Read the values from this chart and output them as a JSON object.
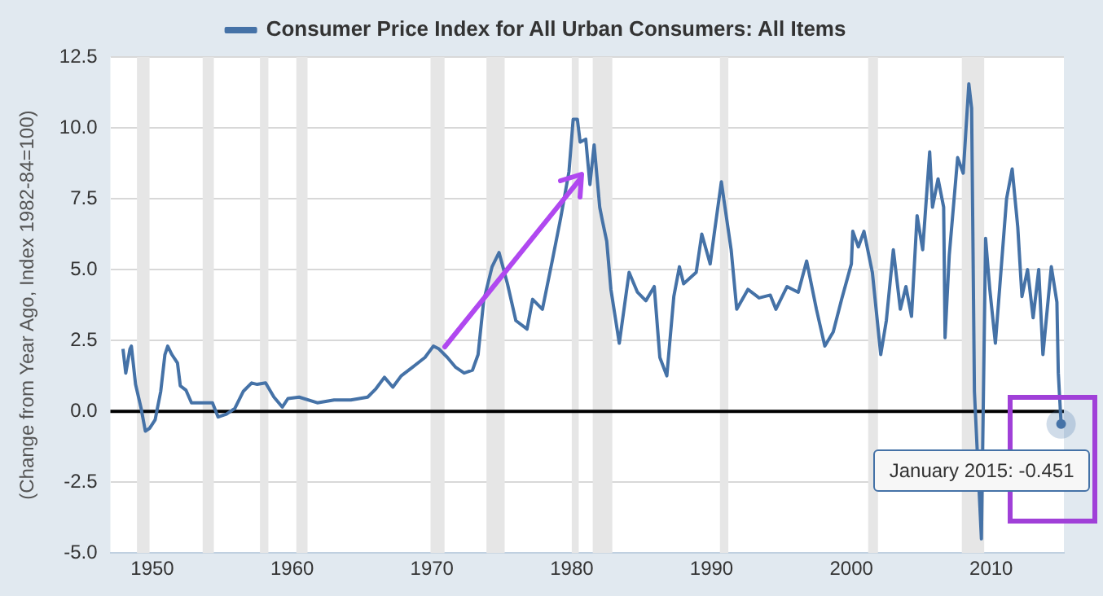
{
  "chart_data": {
    "type": "line",
    "ylabel": "(Change from Year Ago, Index 1982-84=100)",
    "series": [
      {
        "name": "Consumer Price Index for All Urban Consumers: All Items",
        "color": "#4572a7",
        "x": [
          1947.9,
          1948.1,
          1948.4,
          1948.5,
          1948.8,
          1949.2,
          1949.5,
          1949.8,
          1950.2,
          1950.6,
          1950.9,
          1951.1,
          1951.4,
          1951.8,
          1952.0,
          1952.4,
          1952.8,
          1953.4,
          1954.3,
          1954.7,
          1955.3,
          1955.9,
          1956.5,
          1957.1,
          1957.5,
          1958.1,
          1958.7,
          1959.3,
          1959.7,
          1960.5,
          1961.8,
          1963.0,
          1964.2,
          1965.4,
          1966.0,
          1966.6,
          1967.2,
          1967.8,
          1968.6,
          1969.5,
          1970.1,
          1970.5,
          1971.1,
          1971.7,
          1972.3,
          1972.9,
          1973.3,
          1973.7,
          1974.3,
          1974.8,
          1975.4,
          1976.0,
          1976.8,
          1977.2,
          1977.9,
          1978.6,
          1979.2,
          1979.8,
          1980.1,
          1980.4,
          1980.6,
          1981.0,
          1981.3,
          1981.6,
          1982.0,
          1982.2,
          1982.5,
          1982.8,
          1983.4,
          1984.1,
          1984.7,
          1985.3,
          1985.9,
          1986.3,
          1986.8,
          1987.3,
          1987.7,
          1988.0,
          1988.9,
          1989.3,
          1989.9,
          1990.2,
          1990.7,
          1990.9,
          1991.4,
          1991.8,
          1992.6,
          1993.4,
          1994.2,
          1994.6,
          1995.4,
          1996.2,
          1996.8,
          1997.5,
          1998.1,
          1998.7,
          1999.3,
          2000.0,
          2000.1,
          2000.5,
          2000.9,
          2001.5,
          2002.1,
          2002.5,
          2003.0,
          2003.5,
          2003.9,
          2004.3,
          2004.7,
          2005.1,
          2005.6,
          2005.8,
          2006.2,
          2006.6,
          2006.7,
          2007.0,
          2007.6,
          2008.0,
          2008.4,
          2008.6,
          2008.8,
          2009.3,
          2009.6,
          2009.9,
          2010.3,
          2011.1,
          2011.5,
          2011.9,
          2012.2,
          2012.6,
          2013.0,
          2013.4,
          2013.7,
          2014.3,
          2014.7,
          2014.8,
          2015.0
        ],
        "values": [
          2.2,
          1.35,
          2.2,
          2.3,
          0.95,
          0.1,
          -0.7,
          -0.6,
          -0.3,
          0.7,
          2.0,
          2.3,
          2.0,
          1.7,
          0.9,
          0.75,
          0.3,
          0.3,
          0.3,
          -0.2,
          -0.1,
          0.1,
          0.7,
          1.0,
          0.95,
          1.0,
          0.5,
          0.15,
          0.45,
          0.5,
          0.3,
          0.4,
          0.4,
          0.5,
          0.8,
          1.2,
          0.85,
          1.25,
          1.55,
          1.9,
          2.3,
          2.2,
          1.9,
          1.55,
          1.35,
          1.45,
          2.0,
          3.9,
          5.1,
          5.6,
          4.5,
          3.2,
          2.9,
          3.95,
          3.6,
          5.3,
          6.8,
          8.45,
          10.3,
          10.3,
          9.5,
          9.6,
          8.0,
          9.4,
          7.2,
          6.7,
          6.0,
          4.3,
          2.4,
          4.9,
          4.2,
          3.9,
          4.4,
          1.9,
          1.25,
          4.05,
          5.1,
          4.5,
          4.9,
          6.25,
          5.2,
          6.3,
          8.1,
          7.4,
          5.7,
          3.6,
          4.3,
          4.0,
          4.1,
          3.6,
          4.4,
          4.2,
          5.3,
          3.6,
          2.3,
          2.8,
          3.95,
          5.2,
          6.35,
          5.8,
          6.35,
          4.9,
          2.0,
          3.2,
          5.7,
          3.6,
          4.4,
          3.35,
          6.9,
          5.7,
          9.15,
          7.2,
          8.2,
          7.2,
          2.6,
          5.5,
          8.95,
          8.4,
          11.55,
          10.7,
          0.7,
          -4.5,
          6.1,
          4.3,
          2.4,
          7.5,
          8.55,
          6.5,
          4.05,
          5.0,
          3.3,
          5.0,
          2.0,
          5.1,
          3.85,
          1.35,
          -0.451
        ]
      }
    ],
    "xlim": [
      1947,
      2015.2
    ],
    "xticks": [
      1950,
      1960,
      1970,
      1980,
      1990,
      2000,
      2010
    ],
    "ylim": [
      -5,
      12.5
    ],
    "yticks": [
      {
        "value": -5,
        "label": "-5.0"
      },
      {
        "value": -2.5,
        "label": "-2.5"
      },
      {
        "value": 0,
        "label": "0.0"
      },
      {
        "value": 2.5,
        "label": "2.5"
      },
      {
        "value": 5,
        "label": "5.0"
      },
      {
        "value": 7.5,
        "label": "7.5"
      },
      {
        "value": 10,
        "label": "10.0"
      },
      {
        "value": 12.5,
        "label": "12.5"
      }
    ],
    "bands": [
      {
        "axis": "x",
        "from": 1948.9,
        "to": 1949.8,
        "color": "#e6e6e6"
      },
      {
        "axis": "x",
        "from": 1953.6,
        "to": 1954.4,
        "color": "#e6e6e6"
      },
      {
        "axis": "x",
        "from": 1957.7,
        "to": 1958.3,
        "color": "#e6e6e6"
      },
      {
        "axis": "x",
        "from": 1960.3,
        "to": 1961.1,
        "color": "#e6e6e6"
      },
      {
        "axis": "x",
        "from": 1969.9,
        "to": 1970.9,
        "color": "#e6e6e6"
      },
      {
        "axis": "x",
        "from": 1973.9,
        "to": 1975.2,
        "color": "#e6e6e6"
      },
      {
        "axis": "x",
        "from": 1980.0,
        "to": 1980.5,
        "color": "#e6e6e6"
      },
      {
        "axis": "x",
        "from": 1981.5,
        "to": 1982.9,
        "color": "#e6e6e6"
      },
      {
        "axis": "x",
        "from": 1990.6,
        "to": 1991.2,
        "color": "#e6e6e6"
      },
      {
        "axis": "x",
        "from": 2001.2,
        "to": 2001.9,
        "color": "#e6e6e6"
      },
      {
        "axis": "x",
        "from": 2007.9,
        "to": 2009.5,
        "color": "#e6e6e6"
      }
    ],
    "ref_lines": [
      {
        "axis": "y",
        "value": 0,
        "color": "#000000"
      }
    ],
    "annotations": [
      {
        "text": "January 2015: -0.451",
        "x": 2015.0,
        "y": -0.451
      }
    ],
    "grid": "y",
    "legend": "top",
    "marker": "none",
    "line_style": "solid"
  }
}
